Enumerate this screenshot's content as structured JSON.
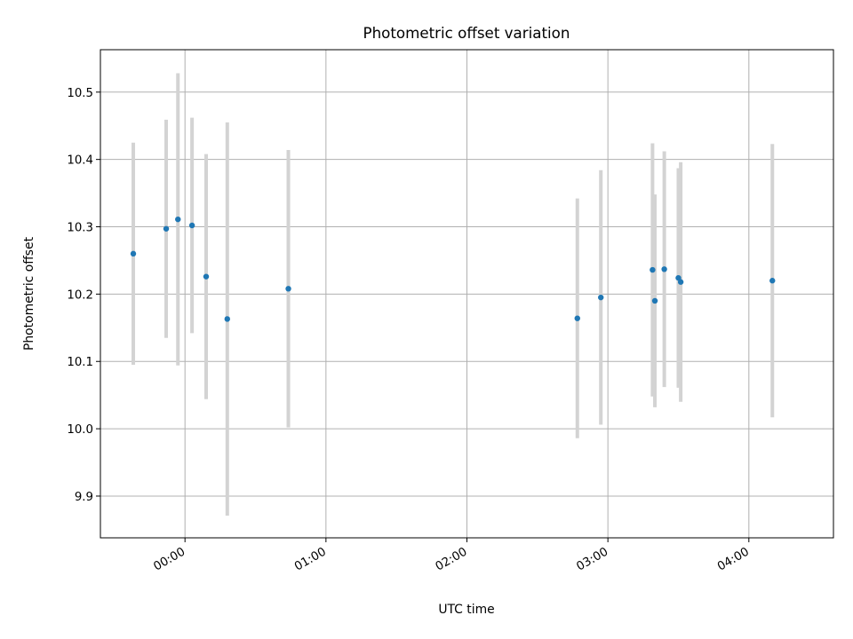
{
  "chart_data": {
    "type": "scatter",
    "title": "Photometric offset variation",
    "xlabel": "UTC time",
    "ylabel": "Photometric offset",
    "xlim": [
      "23:24",
      "04:36"
    ],
    "ylim": [
      9.838,
      10.563
    ],
    "yticks": [
      9.9,
      10.0,
      10.1,
      10.2,
      10.3,
      10.4,
      10.5
    ],
    "ytick_labels": [
      "9.9",
      "10.0",
      "10.1",
      "10.2",
      "10.3",
      "10.4",
      "10.5"
    ],
    "xticks": [
      "00:00",
      "01:00",
      "02:00",
      "03:00",
      "04:00"
    ],
    "xtick_labels": [
      "00:00",
      "01:00",
      "02:00",
      "03:00",
      "04:00"
    ],
    "grid": true,
    "marker_color": "#1f77b4",
    "errorbar_color": "#d3d3d3",
    "points": [
      {
        "x": "23:38",
        "y": 10.26,
        "err": 0.165
      },
      {
        "x": "23:52",
        "y": 10.297,
        "err": 0.162
      },
      {
        "x": "23:57",
        "y": 10.311,
        "err": 0.217
      },
      {
        "x": "00:03",
        "y": 10.302,
        "err": 0.16
      },
      {
        "x": "00:09",
        "y": 10.226,
        "err": 0.182
      },
      {
        "x": "00:18",
        "y": 10.163,
        "err": 0.292
      },
      {
        "x": "00:44",
        "y": 10.208,
        "err": 0.206
      },
      {
        "x": "02:47",
        "y": 10.164,
        "err": 0.178
      },
      {
        "x": "02:57",
        "y": 10.195,
        "err": 0.189
      },
      {
        "x": "03:19",
        "y": 10.236,
        "err": 0.188
      },
      {
        "x": "03:20",
        "y": 10.19,
        "err": 0.158
      },
      {
        "x": "03:24",
        "y": 10.237,
        "err": 0.175
      },
      {
        "x": "03:30",
        "y": 10.224,
        "err": 0.163
      },
      {
        "x": "03:31",
        "y": 10.218,
        "err": 0.178
      },
      {
        "x": "04:10",
        "y": 10.22,
        "err": 0.203
      }
    ]
  }
}
